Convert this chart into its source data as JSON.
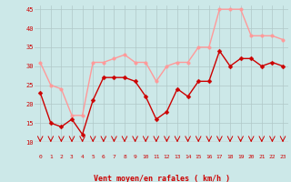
{
  "xlabel": "Vent moyen/en rafales ( km/h )",
  "x": [
    0,
    1,
    2,
    3,
    4,
    5,
    6,
    7,
    8,
    9,
    10,
    11,
    12,
    13,
    14,
    15,
    16,
    17,
    18,
    19,
    20,
    21,
    22,
    23
  ],
  "vent_moyen": [
    23,
    15,
    14,
    16,
    12,
    21,
    27,
    27,
    27,
    26,
    22,
    16,
    18,
    24,
    22,
    26,
    26,
    34,
    30,
    32,
    32,
    30,
    31,
    30
  ],
  "rafales": [
    31,
    25,
    24,
    17,
    17,
    31,
    31,
    32,
    33,
    31,
    31,
    26,
    30,
    31,
    31,
    35,
    35,
    45,
    45,
    45,
    38,
    38,
    38,
    37
  ],
  "color_moyen": "#cc0000",
  "color_rafales": "#ff9999",
  "bg_color": "#cce8e8",
  "grid_color": "#b0c8c8",
  "ylim": [
    10,
    46
  ],
  "yticks": [
    10,
    15,
    20,
    25,
    30,
    35,
    40,
    45
  ],
  "linewidth": 1.0,
  "marker_moyen_size": 2.5,
  "marker_rafales_size": 2.5
}
